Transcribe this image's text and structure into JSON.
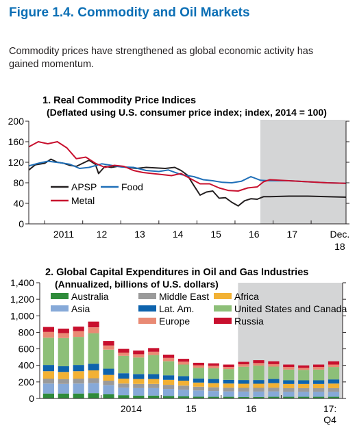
{
  "figure": {
    "title": "Figure 1.4. Commodity and Oil Markets",
    "subtitle": "Commodity prices have strengthened as global economic activity has gained momentum."
  },
  "colors": {
    "apsp": "#231f20",
    "food": "#1f6fb8",
    "metal": "#c8102e",
    "shade": "#d4d5d6",
    "australia": "#2e8b3a",
    "asia": "#86a9d8",
    "middle_east": "#9a9a9a",
    "lat_am": "#0d63ad",
    "africa": "#f2b134",
    "united_states_and_canada": "#8dbf78",
    "europe": "#e98a74",
    "russia": "#c8102e"
  },
  "chart_data": [
    {
      "type": "line",
      "title": "1. Real Commodity Price Indices",
      "subtitle": "(Deflated using U.S. consumer price index; index, 2014 = 100)",
      "ylim": [
        0,
        200
      ],
      "yticks": [
        "0",
        "40",
        "80",
        "120",
        "160",
        "200"
      ],
      "xticks": [
        "2011",
        "12",
        "13",
        "14",
        "15",
        "16",
        "17",
        "Dec.",
        "18"
      ],
      "x_range": [
        "2010-08",
        "2018-12"
      ],
      "projection_start": "2016-09",
      "legend": [
        {
          "key": "apsp",
          "label": "APSP"
        },
        {
          "key": "food",
          "label": "Food"
        },
        {
          "key": "metal",
          "label": "Metal"
        }
      ],
      "series": [
        {
          "key": "apsp",
          "name": "APSP",
          "points": [
            [
              "2010-08",
              105
            ],
            [
              "2010-10",
              115
            ],
            [
              "2011-01",
              118
            ],
            [
              "2011-03",
              126
            ],
            [
              "2011-05",
              120
            ],
            [
              "2011-07",
              118
            ],
            [
              "2011-09",
              114
            ],
            [
              "2011-11",
              112
            ],
            [
              "2012-01",
              118
            ],
            [
              "2012-03",
              124
            ],
            [
              "2012-05",
              116
            ],
            [
              "2012-06",
              98
            ],
            [
              "2012-08",
              112
            ],
            [
              "2012-10",
              110
            ],
            [
              "2012-12",
              112
            ],
            [
              "2013-03",
              110
            ],
            [
              "2013-06",
              108
            ],
            [
              "2013-09",
              110
            ],
            [
              "2013-12",
              109
            ],
            [
              "2014-03",
              108
            ],
            [
              "2014-06",
              110
            ],
            [
              "2014-08",
              104
            ],
            [
              "2014-10",
              95
            ],
            [
              "2014-12",
              75
            ],
            [
              "2015-02",
              56
            ],
            [
              "2015-04",
              62
            ],
            [
              "2015-06",
              64
            ],
            [
              "2015-08",
              50
            ],
            [
              "2015-10",
              51
            ],
            [
              "2015-12",
              42
            ],
            [
              "2016-02",
              35
            ],
            [
              "2016-04",
              45
            ],
            [
              "2016-06",
              49
            ],
            [
              "2016-08",
              48
            ],
            [
              "2016-10",
              53
            ],
            [
              "2016-12",
              53
            ],
            [
              "2017-06",
              54
            ],
            [
              "2017-12",
              54
            ],
            [
              "2018-06",
              53
            ],
            [
              "2018-12",
              52
            ]
          ]
        },
        {
          "key": "food",
          "name": "Food",
          "points": [
            [
              "2010-08",
              113
            ],
            [
              "2010-11",
              118
            ],
            [
              "2011-02",
              122
            ],
            [
              "2011-06",
              119
            ],
            [
              "2011-09",
              116
            ],
            [
              "2011-12",
              108
            ],
            [
              "2012-03",
              110
            ],
            [
              "2012-07",
              117
            ],
            [
              "2012-10",
              114
            ],
            [
              "2013-01",
              111
            ],
            [
              "2013-05",
              110
            ],
            [
              "2013-09",
              104
            ],
            [
              "2014-01",
              102
            ],
            [
              "2014-04",
              105
            ],
            [
              "2014-08",
              96
            ],
            [
              "2014-12",
              92
            ],
            [
              "2015-03",
              86
            ],
            [
              "2015-06",
              84
            ],
            [
              "2015-09",
              81
            ],
            [
              "2015-12",
              80
            ],
            [
              "2016-03",
              83
            ],
            [
              "2016-06",
              92
            ],
            [
              "2016-09",
              85
            ],
            [
              "2016-12",
              84
            ],
            [
              "2017-06",
              84
            ],
            [
              "2017-12",
              82
            ],
            [
              "2018-06",
              80
            ],
            [
              "2018-12",
              79
            ]
          ]
        },
        {
          "key": "metal",
          "name": "Metal",
          "points": [
            [
              "2010-08",
              150
            ],
            [
              "2010-11",
              160
            ],
            [
              "2011-02",
              156
            ],
            [
              "2011-05",
              160
            ],
            [
              "2011-08",
              148
            ],
            [
              "2011-11",
              127
            ],
            [
              "2012-02",
              130
            ],
            [
              "2012-05",
              118
            ],
            [
              "2012-08",
              110
            ],
            [
              "2012-11",
              114
            ],
            [
              "2013-02",
              112
            ],
            [
              "2013-05",
              104
            ],
            [
              "2013-08",
              100
            ],
            [
              "2013-11",
              98
            ],
            [
              "2014-02",
              96
            ],
            [
              "2014-05",
              94
            ],
            [
              "2014-08",
              98
            ],
            [
              "2014-11",
              88
            ],
            [
              "2015-02",
              78
            ],
            [
              "2015-05",
              78
            ],
            [
              "2015-08",
              70
            ],
            [
              "2015-11",
              65
            ],
            [
              "2016-02",
              64
            ],
            [
              "2016-05",
              70
            ],
            [
              "2016-08",
              72
            ],
            [
              "2016-10",
              82
            ],
            [
              "2016-12",
              86
            ],
            [
              "2017-06",
              84
            ],
            [
              "2017-12",
              82
            ],
            [
              "2018-06",
              80
            ],
            [
              "2018-12",
              79
            ]
          ]
        }
      ]
    },
    {
      "type": "bar",
      "stacked": true,
      "title": "2. Global Capital Expenditures in Oil and Gas Industries",
      "subtitle": "(Annualized, billions of U.S. dollars)",
      "ylim": [
        0,
        1400
      ],
      "yticks": [
        "0",
        "200",
        "400",
        "600",
        "800",
        "1,000",
        "1,200",
        "1,400"
      ],
      "xticks": [
        "2014",
        "15",
        "16",
        "17:",
        "Q4"
      ],
      "categories": [
        "2013:Q1",
        "2013:Q2",
        "2013:Q3",
        "2013:Q4",
        "2014:Q1",
        "2014:Q2",
        "2014:Q3",
        "2014:Q4",
        "2015:Q1",
        "2015:Q2",
        "2015:Q3",
        "2015:Q4",
        "2016:Q1",
        "2016:Q2",
        "2016:Q3",
        "2016:Q4",
        "2017:Q1",
        "2017:Q2",
        "2017:Q3",
        "2017:Q4"
      ],
      "projection_from_index": 13,
      "legend": [
        {
          "key": "australia",
          "label": "Australia"
        },
        {
          "key": "middle_east",
          "label": "Middle East"
        },
        {
          "key": "africa",
          "label": "Africa"
        },
        {
          "key": "asia",
          "label": "Asia"
        },
        {
          "key": "lat_am",
          "label": "Lat. Am."
        },
        {
          "key": "united_states_and_canada",
          "label": "United States and Canada"
        },
        {
          "key": "europe",
          "label": "Europe"
        },
        {
          "key": "russia",
          "label": "Russia"
        }
      ],
      "series": [
        {
          "key": "australia",
          "name": "Australia",
          "values": [
            60,
            60,
            60,
            65,
            50,
            40,
            35,
            35,
            30,
            25,
            22,
            20,
            20,
            18,
            18,
            20,
            20,
            20,
            20,
            20
          ]
        },
        {
          "key": "asia",
          "name": "Asia",
          "values": [
            120,
            115,
            120,
            120,
            110,
            90,
            90,
            90,
            85,
            80,
            75,
            70,
            65,
            65,
            65,
            65,
            60,
            60,
            60,
            60
          ]
        },
        {
          "key": "middle_east",
          "name": "Middle East",
          "values": [
            60,
            60,
            60,
            60,
            55,
            50,
            50,
            50,
            50,
            50,
            45,
            45,
            45,
            45,
            45,
            45,
            45,
            45,
            45,
            45
          ]
        },
        {
          "key": "africa",
          "name": "Africa",
          "values": [
            90,
            85,
            90,
            95,
            70,
            60,
            60,
            60,
            60,
            60,
            50,
            50,
            50,
            50,
            50,
            55,
            50,
            50,
            50,
            55
          ]
        },
        {
          "key": "lat_am",
          "name": "Lat. Am.",
          "values": [
            75,
            70,
            75,
            80,
            75,
            65,
            60,
            60,
            55,
            55,
            50,
            50,
            45,
            45,
            45,
            50,
            45,
            45,
            45,
            50
          ]
        },
        {
          "key": "united_states_and_canada",
          "name": "United States and Canada",
          "values": [
            330,
            340,
            340,
            370,
            230,
            210,
            200,
            230,
            170,
            140,
            130,
            130,
            130,
            160,
            175,
            150,
            130,
            125,
            130,
            150
          ]
        },
        {
          "key": "europe",
          "name": "Europe",
          "values": [
            70,
            60,
            70,
            70,
            50,
            40,
            40,
            40,
            40,
            35,
            30,
            30,
            25,
            30,
            30,
            30,
            30,
            25,
            30,
            30
          ]
        },
        {
          "key": "russia",
          "name": "Russia",
          "values": [
            60,
            55,
            55,
            70,
            55,
            45,
            45,
            45,
            40,
            35,
            30,
            30,
            30,
            30,
            35,
            35,
            30,
            30,
            30,
            40
          ]
        }
      ]
    }
  ]
}
